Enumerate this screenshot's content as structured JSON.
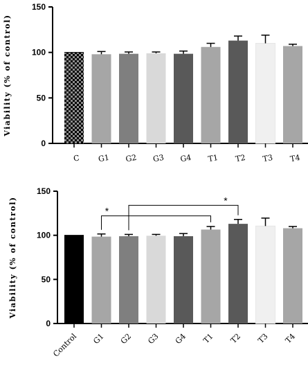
{
  "chart_data": [
    {
      "type": "bar",
      "title": "",
      "xlabel": "",
      "ylabel": "Viability (% of control)",
      "ylim": [
        0,
        150
      ],
      "yticks": [
        0,
        50,
        100,
        150
      ],
      "categories": [
        "C",
        "G1",
        "G2",
        "G3",
        "G4",
        "T1",
        "T2",
        "T3",
        "T4"
      ],
      "values": [
        100,
        98,
        98.5,
        99,
        98.5,
        106,
        113,
        110,
        107
      ],
      "errors": [
        0,
        3,
        2,
        1.5,
        3,
        4,
        5,
        9,
        2
      ],
      "colors": [
        "checker",
        "#a6a6a6",
        "#7f7f7f",
        "#d9d9d9",
        "#595959",
        "#a6a6a6",
        "#595959",
        "#f0f0f0",
        "#a6a6a6"
      ],
      "grid": false,
      "annotations": []
    },
    {
      "type": "bar",
      "title": "",
      "xlabel": "",
      "ylabel": "Viability (% of control)",
      "ylim": [
        0,
        150
      ],
      "yticks": [
        0,
        50,
        100,
        150
      ],
      "categories": [
        "Control",
        "G1",
        "G2",
        "G3",
        "G4",
        "T1",
        "T2",
        "T3",
        "T4"
      ],
      "values": [
        100,
        98.5,
        99,
        99.5,
        99,
        106.5,
        113,
        110.5,
        108
      ],
      "errors": [
        0,
        3,
        2,
        1.5,
        3,
        3.5,
        5,
        9,
        2
      ],
      "colors": [
        "#000000",
        "#a6a6a6",
        "#7f7f7f",
        "#d9d9d9",
        "#595959",
        "#a6a6a6",
        "#595959",
        "#f0f0f0",
        "#a6a6a6"
      ],
      "grid": false,
      "annotations": [
        {
          "from": "G1",
          "to": "T1",
          "level": 122,
          "label": "*"
        },
        {
          "from": "G2",
          "to": "T2",
          "level": 134,
          "label": "*"
        }
      ]
    }
  ]
}
